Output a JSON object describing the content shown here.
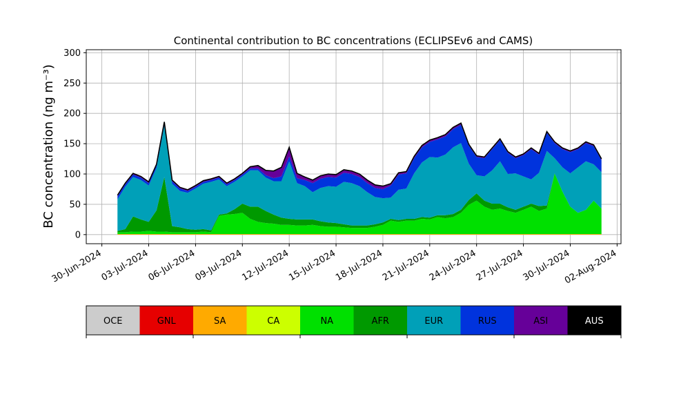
{
  "chart_data": {
    "type": "area",
    "stacked": true,
    "title": "Continental contribution to BC concentrations (ECLIPSEv6 and CAMS)",
    "ylabel": "BC concentration (ng m⁻³)",
    "xlabel": "",
    "ylim": [
      -15,
      305
    ],
    "yticks": [
      0,
      50,
      100,
      150,
      200,
      250,
      300
    ],
    "xlim": [
      "2024-06-29",
      "2024-08-02T06:00"
    ],
    "xticks": [
      "2024-06-30",
      "2024-07-03",
      "2024-07-06",
      "2024-07-09",
      "2024-07-12",
      "2024-07-15",
      "2024-07-18",
      "2024-07-21",
      "2024-07-24",
      "2024-07-27",
      "2024-07-30",
      "2024-08-02"
    ],
    "xtick_labels": [
      "30-Jun-2024",
      "03-Jul-2024",
      "06-Jul-2024",
      "09-Jul-2024",
      "12-Jul-2024",
      "15-Jul-2024",
      "18-Jul-2024",
      "21-Jul-2024",
      "24-Jul-2024",
      "27-Jul-2024",
      "30-Jul-2024",
      "02-Aug-2024"
    ],
    "grid": true,
    "legend": "colorbar-bottom",
    "dates": [
      "2024-07-01",
      "2024-07-01T12:00",
      "2024-07-02",
      "2024-07-02T12:00",
      "2024-07-03",
      "2024-07-03T12:00",
      "2024-07-04",
      "2024-07-04T12:00",
      "2024-07-05",
      "2024-07-05T12:00",
      "2024-07-06",
      "2024-07-06T12:00",
      "2024-07-07",
      "2024-07-07T12:00",
      "2024-07-08",
      "2024-07-08T12:00",
      "2024-07-09",
      "2024-07-09T12:00",
      "2024-07-10",
      "2024-07-10T12:00",
      "2024-07-11",
      "2024-07-11T12:00",
      "2024-07-12",
      "2024-07-12T12:00",
      "2024-07-13",
      "2024-07-13T12:00",
      "2024-07-14",
      "2024-07-14T12:00",
      "2024-07-15",
      "2024-07-15T12:00",
      "2024-07-16",
      "2024-07-16T12:00",
      "2024-07-17",
      "2024-07-17T12:00",
      "2024-07-18",
      "2024-07-18T12:00",
      "2024-07-19",
      "2024-07-19T12:00",
      "2024-07-20",
      "2024-07-20T12:00",
      "2024-07-21",
      "2024-07-21T12:00",
      "2024-07-22",
      "2024-07-22T12:00",
      "2024-07-23",
      "2024-07-23T12:00",
      "2024-07-24",
      "2024-07-24T12:00",
      "2024-07-25",
      "2024-07-25T12:00",
      "2024-07-26",
      "2024-07-26T12:00",
      "2024-07-27",
      "2024-07-27T12:00",
      "2024-07-28",
      "2024-07-28T12:00",
      "2024-07-29",
      "2024-07-29T12:00",
      "2024-07-30",
      "2024-07-30T12:00",
      "2024-07-31",
      "2024-07-31T12:00",
      "2024-08-01"
    ],
    "series": [
      {
        "name": "OCE",
        "color": "#cccccc",
        "values": [
          0,
          0,
          0,
          0,
          0,
          0,
          0,
          0,
          0,
          0,
          0,
          0,
          0,
          0,
          0,
          0,
          0,
          0,
          0,
          0,
          0,
          0,
          0,
          0,
          0,
          0,
          0,
          0,
          0,
          0,
          0,
          0,
          0,
          0,
          0,
          0,
          0,
          0,
          0,
          0,
          0,
          0,
          0,
          0,
          0,
          0,
          0,
          0,
          0,
          0,
          0,
          0,
          0,
          0,
          0,
          0,
          0,
          0,
          0,
          0,
          0,
          0,
          0
        ]
      },
      {
        "name": "GNL",
        "color": "#e60000",
        "values": [
          0,
          0,
          0,
          0,
          0,
          0,
          0,
          0,
          0,
          0,
          0,
          0,
          0,
          0,
          0,
          0,
          0,
          0,
          0,
          0,
          0,
          0,
          0,
          0,
          0,
          0,
          0,
          0,
          0,
          0,
          0,
          0,
          0,
          0,
          0,
          0,
          0,
          0,
          0,
          0,
          0,
          0,
          0,
          0,
          0,
          0,
          0,
          0,
          0,
          0,
          0,
          0,
          0,
          0,
          0,
          0,
          0,
          0,
          0,
          0,
          0,
          0,
          0
        ]
      },
      {
        "name": "SA",
        "color": "#ffaa00",
        "values": [
          1,
          1,
          1,
          1,
          1,
          1,
          1,
          1,
          1,
          1,
          1,
          1,
          1,
          1,
          1,
          1,
          1,
          1,
          1,
          1,
          1,
          1,
          1,
          1,
          1,
          1,
          1,
          1,
          1,
          1,
          1,
          1,
          1,
          1,
          1,
          1,
          1,
          1,
          1,
          1,
          1,
          1,
          1,
          1,
          1,
          1,
          1,
          1,
          1,
          1,
          1,
          1,
          1,
          1,
          1,
          1,
          1,
          1,
          1,
          1,
          1,
          1,
          1
        ]
      },
      {
        "name": "CA",
        "color": "#ccff00",
        "values": [
          0,
          0,
          0,
          0,
          0,
          0,
          0,
          0,
          0,
          0,
          0,
          0,
          0,
          0,
          0,
          0,
          0,
          0,
          0,
          0,
          0,
          0,
          0,
          0,
          0,
          0,
          0,
          0,
          0,
          0,
          0,
          0,
          0,
          0,
          0,
          0,
          0,
          0,
          0,
          0,
          0,
          0,
          0,
          0,
          0,
          0,
          0,
          0,
          0,
          0,
          0,
          0,
          0,
          0,
          0,
          0,
          0,
          0,
          0,
          0,
          0,
          0,
          0
        ]
      },
      {
        "name": "NA",
        "color": "#00e000",
        "values": [
          3,
          3,
          4,
          4,
          5,
          4,
          4,
          3,
          3,
          3,
          3,
          4,
          3,
          30,
          32,
          33,
          35,
          25,
          20,
          18,
          17,
          15,
          15,
          14,
          14,
          15,
          13,
          12,
          12,
          11,
          10,
          10,
          10,
          12,
          15,
          22,
          20,
          22,
          22,
          25,
          24,
          28,
          26,
          28,
          35,
          48,
          55,
          45,
          40,
          42,
          38,
          35,
          40,
          45,
          38,
          42,
          100,
          70,
          45,
          35,
          40,
          55,
          42
        ]
      },
      {
        "name": "AFR",
        "color": "#009900",
        "values": [
          2,
          5,
          25,
          20,
          15,
          35,
          90,
          10,
          8,
          5,
          4,
          4,
          3,
          2,
          2,
          8,
          15,
          20,
          25,
          20,
          15,
          12,
          10,
          10,
          10,
          9,
          8,
          7,
          6,
          5,
          4,
          4,
          4,
          4,
          4,
          3,
          3,
          3,
          3,
          3,
          3,
          3,
          5,
          5,
          5,
          8,
          12,
          10,
          10,
          8,
          6,
          5,
          5,
          5,
          8,
          5,
          0,
          0,
          0,
          0,
          0,
          0,
          0
        ]
      },
      {
        "name": "EUR",
        "color": "#00a0b8",
        "values": [
          52,
          70,
          65,
          65,
          60,
          70,
          85,
          70,
          60,
          60,
          68,
          75,
          80,
          58,
          45,
          45,
          45,
          60,
          60,
          55,
          55,
          60,
          95,
          60,
          55,
          45,
          55,
          60,
          60,
          70,
          70,
          65,
          55,
          45,
          40,
          35,
          50,
          50,
          75,
          90,
          100,
          95,
          100,
          110,
          110,
          60,
          30,
          40,
          55,
          70,
          55,
          60,
          50,
          40,
          55,
          90,
          25,
          40,
          55,
          75,
          80,
          60,
          60
        ]
      },
      {
        "name": "RUS",
        "color": "#0033dd",
        "values": [
          5,
          4,
          4,
          4,
          4,
          4,
          4,
          4,
          4,
          3,
          3,
          3,
          3,
          3,
          3,
          3,
          3,
          3,
          3,
          4,
          5,
          8,
          8,
          8,
          10,
          15,
          15,
          15,
          15,
          15,
          15,
          15,
          15,
          15,
          15,
          20,
          25,
          25,
          25,
          25,
          25,
          30,
          30,
          30,
          30,
          30,
          30,
          30,
          35,
          35,
          35,
          25,
          35,
          50,
          30,
          30,
          25,
          30,
          35,
          30,
          30,
          30,
          20
        ]
      },
      {
        "name": "ASI",
        "color": "#660099",
        "values": [
          2,
          2,
          2,
          2,
          2,
          2,
          2,
          2,
          2,
          2,
          2,
          2,
          2,
          2,
          2,
          2,
          2,
          3,
          5,
          8,
          12,
          15,
          15,
          8,
          5,
          5,
          5,
          5,
          5,
          5,
          5,
          5,
          5,
          5,
          5,
          3,
          3,
          3,
          3,
          3,
          3,
          3,
          3,
          3,
          3,
          2,
          2,
          2,
          2,
          2,
          2,
          2,
          2,
          2,
          2,
          2,
          2,
          2,
          2,
          2,
          2,
          2,
          2
        ]
      },
      {
        "name": "AUS",
        "color": "#000000",
        "values": [
          0,
          0,
          0,
          0,
          0,
          0,
          0,
          0,
          0,
          0,
          0,
          0,
          0,
          0,
          0,
          0,
          0,
          0,
          0,
          0,
          0,
          0,
          0,
          0,
          0,
          0,
          0,
          0,
          0,
          0,
          0,
          0,
          0,
          0,
          0,
          0,
          0,
          0,
          0,
          0,
          0,
          0,
          0,
          0,
          0,
          0,
          0,
          0,
          0,
          0,
          0,
          0,
          0,
          0,
          0,
          0,
          0,
          0,
          0,
          0,
          0,
          0,
          0
        ]
      }
    ]
  }
}
